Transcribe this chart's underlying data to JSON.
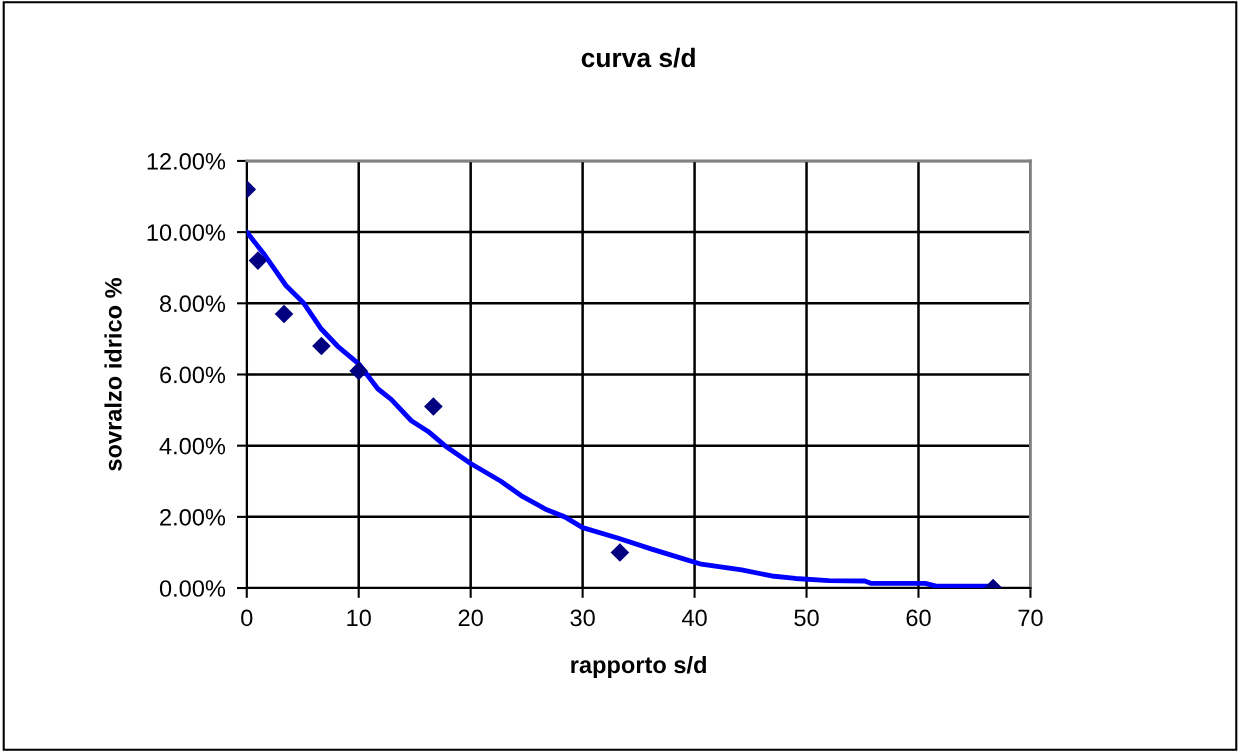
{
  "chart_data": {
    "type": "scatter",
    "title": "curva s/d",
    "xlabel": "rapporto s/d",
    "ylabel": "sovralzo idrico %",
    "xlim": [
      0,
      70
    ],
    "xticks": [
      0,
      10,
      20,
      30,
      40,
      50,
      60,
      70
    ],
    "ylim": [
      0,
      12
    ],
    "yticks": [
      {
        "value": 0,
        "label": "0.00%"
      },
      {
        "value": 2,
        "label": "2.00%"
      },
      {
        "value": 4,
        "label": "4.00%"
      },
      {
        "value": 6,
        "label": "6.00%"
      },
      {
        "value": 8,
        "label": "8.00%"
      },
      {
        "value": 10,
        "label": "10.00%"
      },
      {
        "value": 12,
        "label": "12.00%"
      }
    ],
    "grid": true,
    "legend": false,
    "series": [
      {
        "color": "#000080",
        "marker": "diamond",
        "x": [
          0,
          1,
          3.33,
          6.67,
          10,
          16.67,
          33.33,
          66.67
        ],
        "values": [
          11.2,
          9.2,
          7.7,
          6.8,
          6.1,
          5.1,
          1.0,
          0.0
        ]
      },
      {
        "type": "line",
        "color": "#0000ff",
        "marker": "none",
        "line_style": "solid",
        "x": [
          0,
          1.5,
          3.5,
          5.1,
          6.6,
          8.1,
          10,
          11.7,
          12.9,
          14.7,
          16.2,
          17.7,
          20,
          22.7,
          24.5,
          26.8,
          28.4,
          30,
          33.2,
          36.1,
          38.8,
          40.6,
          44.2,
          46.9,
          49,
          52,
          55.2,
          55.8,
          60.6,
          61.5,
          66.8
        ],
        "values": [
          10.0,
          9.4,
          8.5,
          8.0,
          7.3,
          6.8,
          6.3,
          5.6,
          5.3,
          4.7,
          4.4,
          4.0,
          3.5,
          3.0,
          2.6,
          2.2,
          2.0,
          1.7,
          1.4,
          1.1,
          0.84,
          0.67,
          0.51,
          0.34,
          0.27,
          0.21,
          0.2,
          0.13,
          0.13,
          0.06,
          0.05
        ]
      }
    ]
  }
}
